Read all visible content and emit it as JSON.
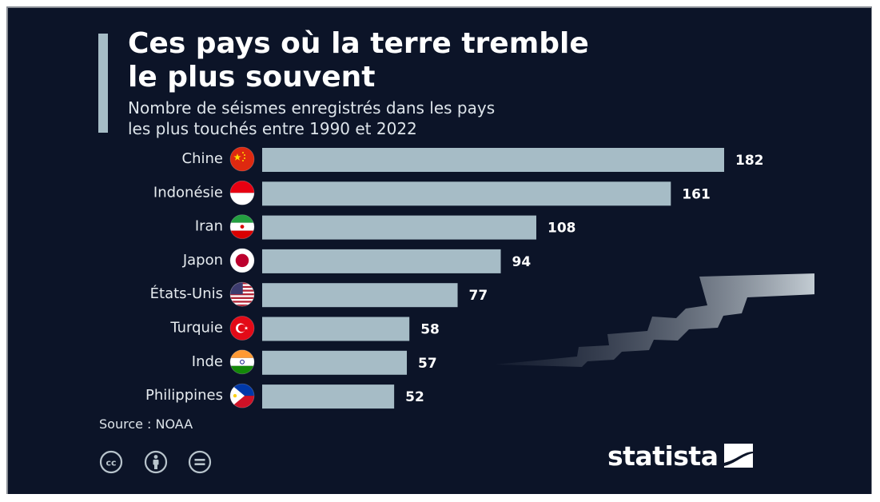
{
  "header": {
    "title_line1": "Ces pays où la terre tremble",
    "title_line2": "le plus souvent",
    "subtitle_line1": "Nombre de séismes enregistrés dans les pays",
    "subtitle_line2": "les plus touchés entre 1990 et 2022"
  },
  "footer": {
    "source": "Source : NOAA",
    "brand": "statista",
    "license_icons": [
      "creative-commons-icon",
      "attribution-icon",
      "no-derivatives-icon"
    ]
  },
  "colors": {
    "background": "#0c1428",
    "bar": "#a6bcc6",
    "text": "#ffffff",
    "muted_text": "#dde4ea"
  },
  "chart_data": {
    "type": "bar",
    "orientation": "horizontal",
    "categories": [
      "Chine",
      "Indonésie",
      "Iran",
      "Japon",
      "États-Unis",
      "Turquie",
      "Inde",
      "Philippines"
    ],
    "flags": [
      "china-flag-icon",
      "indonesia-flag-icon",
      "iran-flag-icon",
      "japan-flag-icon",
      "usa-flag-icon",
      "turkey-flag-icon",
      "india-flag-icon",
      "philippines-flag-icon"
    ],
    "values": [
      182,
      161,
      108,
      94,
      77,
      58,
      57,
      52
    ],
    "data_labels": [
      "182",
      "161",
      "108",
      "94",
      "77",
      "58",
      "57",
      "52"
    ],
    "xlim": [
      0,
      182
    ],
    "grid": false,
    "title": "Ces pays où la terre tremble le plus souvent",
    "subtitle": "Nombre de séismes enregistrés dans les pays les plus touchés entre 1990 et 2022",
    "xlabel": "",
    "ylabel": ""
  }
}
